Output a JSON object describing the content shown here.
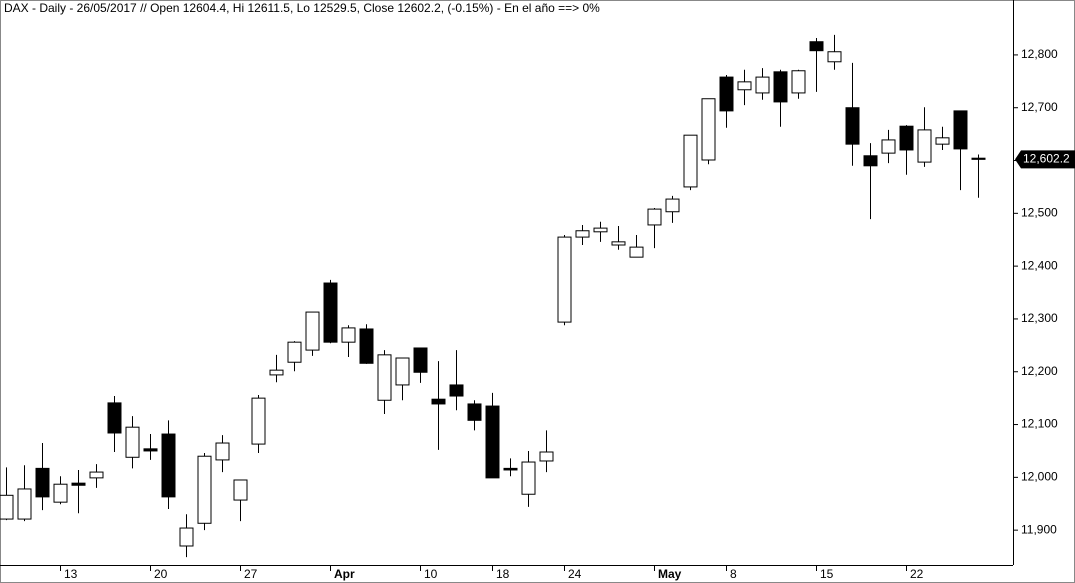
{
  "chart_data": {
    "type": "candlestick",
    "title": "DAX - Daily - 26/05/2017 // Open 12604.4, Hi 12611.5, Lo 12529.5, Close 12602.2, (-0.15%) - En el año ==> 0%",
    "categories": [
      null,
      null,
      null,
      "13",
      null,
      null,
      null,
      null,
      "20",
      null,
      null,
      null,
      null,
      "27",
      null,
      null,
      null,
      null,
      "Apr",
      null,
      null,
      null,
      null,
      "10",
      null,
      null,
      null,
      "18",
      null,
      null,
      null,
      "24",
      null,
      null,
      null,
      null,
      "May",
      null,
      null,
      null,
      "8",
      null,
      null,
      null,
      null,
      "15",
      null,
      null,
      null,
      null,
      "22",
      null,
      null,
      null,
      null
    ],
    "open": [
      11921,
      11921,
      12017,
      11953,
      11989,
      11999,
      12141,
      12038,
      12054,
      12082,
      11870,
      11913,
      12033,
      11957,
      12063,
      12194,
      12218,
      12241,
      12368,
      12256,
      12281,
      12146,
      12175,
      12245,
      12148,
      12175,
      12139,
      12135,
      12017,
      11968,
      12031,
      12294,
      12455,
      12465,
      12440,
      12417,
      12478,
      12503,
      12550,
      12601,
      12758,
      12734,
      12728,
      12768,
      12728,
      12825,
      12787,
      12700,
      12609,
      12614,
      12665,
      12597,
      12631,
      12694,
      12604.4
    ],
    "high": [
      12019,
      12023,
      12065,
      12002,
      12014,
      12025,
      12154,
      12116,
      12082,
      12108,
      11930,
      12046,
      12080,
      11995,
      12156,
      12232,
      12258,
      12313,
      12374,
      12288,
      12290,
      12241,
      12226,
      12245,
      12220,
      12241,
      12146,
      12160,
      12036,
      12050,
      12089,
      12459,
      12478,
      12484,
      12476,
      12459,
      12510,
      12533,
      12648,
      12717,
      12762,
      12772,
      12775,
      12772,
      12772,
      12832,
      12838,
      12785,
      12633,
      12658,
      12667,
      12701,
      12664,
      12694,
      12611.5
    ],
    "low": [
      11919,
      11917,
      11938,
      11949,
      11932,
      11980,
      12048,
      12017,
      12033,
      11940,
      11849,
      11900,
      12010,
      11917,
      12046,
      12180,
      12201,
      12230,
      12254,
      12228,
      12215,
      12120,
      12146,
      12179,
      12052,
      12127,
      12089,
      11999,
      12002,
      11944,
      12010,
      12288,
      12440,
      12446,
      12431,
      12417,
      12434,
      12482,
      12544,
      12593,
      12662,
      12705,
      12715,
      12664,
      12717,
      12730,
      12772,
      12590,
      12489,
      12595,
      12573,
      12588,
      12620,
      12544,
      12529.5
    ],
    "close": [
      11966,
      11978,
      11963,
      11987,
      11985,
      12010,
      12084,
      12095,
      12050,
      11963,
      11904,
      12040,
      12065,
      11995,
      12150,
      12203,
      12256,
      12313,
      12256,
      12283,
      12216,
      12232,
      12226,
      12199,
      12139,
      12154,
      12108,
      11999,
      12014,
      12029,
      12048,
      12455,
      12467,
      12472,
      12446,
      12436,
      12508,
      12527,
      12648,
      12717,
      12694,
      12749,
      12758,
      12711,
      12770,
      12808,
      12806,
      12631,
      12590,
      12639,
      12620,
      12658,
      12643,
      12622,
      12602.2
    ],
    "up_color": "#ffffff",
    "down_color": "#000000",
    "ylim": [
      11834,
      12904
    ],
    "yticks": [
      {
        "value": 11900,
        "label": "11,900"
      },
      {
        "value": 12000,
        "label": "12,000"
      },
      {
        "value": 12100,
        "label": "12,100"
      },
      {
        "value": 12200,
        "label": "12,200"
      },
      {
        "value": 12300,
        "label": "12,300"
      },
      {
        "value": 12400,
        "label": "12,400"
      },
      {
        "value": 12500,
        "label": "12,500"
      },
      {
        "value": 12600,
        "label": "12,600"
      },
      {
        "value": 12700,
        "label": "12,700"
      },
      {
        "value": 12800,
        "label": "12,800"
      }
    ],
    "last_label": {
      "value": 12602.2,
      "label": "12,602.2"
    }
  }
}
